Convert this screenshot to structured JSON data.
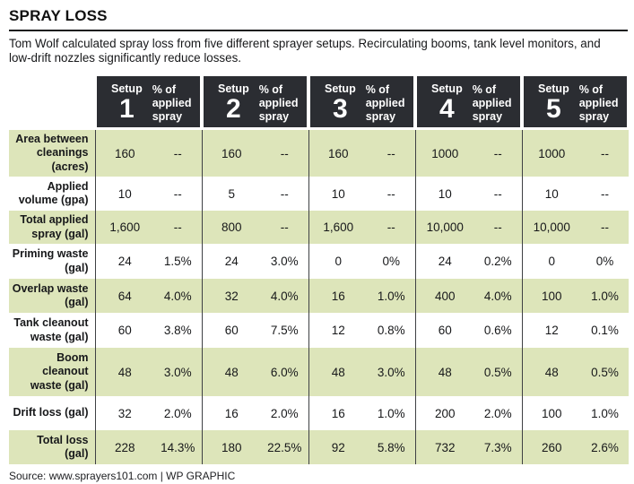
{
  "title": "SPRAY LOSS",
  "subtitle": "Tom Wolf calculated spray loss from five different sprayer setups. Recirculating booms, tank level monitors, and\nlow-drift nozzles significantly reduce losses.",
  "source": "Source: www.sprayers101.com  |  WP GRAPHIC",
  "colors": {
    "header_bg": "#2b2d32",
    "row_green": "#dde5ba",
    "separator": "#3e4044",
    "text": "#17181a"
  },
  "header": {
    "setup_label": "Setup",
    "pct_label": "% of\napplied\nspray",
    "setup_numbers": [
      "1",
      "2",
      "3",
      "4",
      "5"
    ]
  },
  "chart_data": {
    "type": "table",
    "title": "SPRAY LOSS",
    "column_groups": [
      "Setup 1",
      "Setup 2",
      "Setup 3",
      "Setup 4",
      "Setup 5"
    ],
    "sub_columns": [
      "value",
      "% of applied spray"
    ],
    "rows": [
      {
        "label": "Area between\ncleanings\n(acres)",
        "cells": [
          "160",
          "--",
          "160",
          "--",
          "160",
          "--",
          "1000",
          "--",
          "1000",
          "--"
        ]
      },
      {
        "label": "Applied\nvolume (gpa)",
        "cells": [
          "10",
          "--",
          "5",
          "--",
          "10",
          "--",
          "10",
          "--",
          "10",
          "--"
        ]
      },
      {
        "label": "Total applied\nspray (gal)",
        "cells": [
          "1,600",
          "--",
          "800",
          "--",
          "1,600",
          "--",
          "10,000",
          "--",
          "10,000",
          "--"
        ]
      },
      {
        "label": "Priming waste\n(gal)",
        "cells": [
          "24",
          "1.5%",
          "24",
          "3.0%",
          "0",
          "0%",
          "24",
          "0.2%",
          "0",
          "0%"
        ]
      },
      {
        "label": "Overlap waste\n(gal)",
        "cells": [
          "64",
          "4.0%",
          "32",
          "4.0%",
          "16",
          "1.0%",
          "400",
          "4.0%",
          "100",
          "1.0%"
        ]
      },
      {
        "label": "Tank cleanout\nwaste (gal)",
        "cells": [
          "60",
          "3.8%",
          "60",
          "7.5%",
          "12",
          "0.8%",
          "60",
          "0.6%",
          "12",
          "0.1%"
        ]
      },
      {
        "label": "Boom\ncleanout\nwaste (gal)",
        "cells": [
          "48",
          "3.0%",
          "48",
          "6.0%",
          "48",
          "3.0%",
          "48",
          "0.5%",
          "48",
          "0.5%"
        ]
      },
      {
        "label": "Drift loss (gal)",
        "cells": [
          "32",
          "2.0%",
          "16",
          "2.0%",
          "16",
          "1.0%",
          "200",
          "2.0%",
          "100",
          "1.0%"
        ]
      },
      {
        "label": "Total loss\n(gal)",
        "cells": [
          "228",
          "14.3%",
          "180",
          "22.5%",
          "92",
          "5.8%",
          "732",
          "7.3%",
          "260",
          "2.6%"
        ]
      }
    ]
  }
}
